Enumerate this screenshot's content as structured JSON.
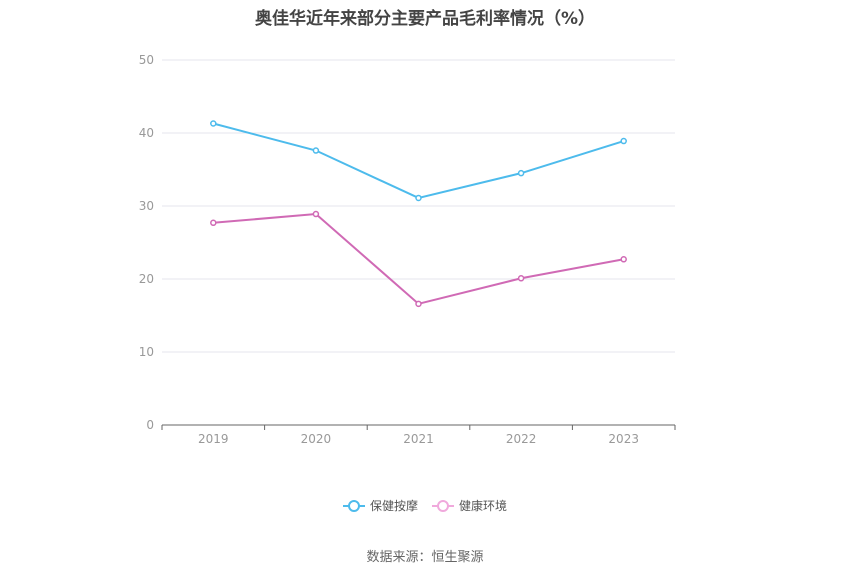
{
  "title": "奥佳华近年来部分主要产品毛利率情况（%）",
  "source": "数据来源：恒生聚源",
  "colors": {
    "series1": "#4dbbec",
    "series2": "#d06ab5",
    "grid": "#e5e5ee",
    "axis": "#666666"
  },
  "chart_data": {
    "type": "line",
    "title": "奥佳华近年来部分主要产品毛利率情况（%）",
    "categories": [
      "2019",
      "2020",
      "2021",
      "2022",
      "2023"
    ],
    "ylim": [
      0,
      50
    ],
    "yticks": [
      0,
      10,
      20,
      30,
      40,
      50
    ],
    "grid": true,
    "legend_position": "bottom",
    "series": [
      {
        "name": "保健按摩",
        "values": [
          41.3,
          37.6,
          31.1,
          34.5,
          38.9
        ]
      },
      {
        "name": "健康环境",
        "values": [
          27.7,
          28.9,
          16.6,
          20.1,
          22.7
        ]
      }
    ]
  }
}
